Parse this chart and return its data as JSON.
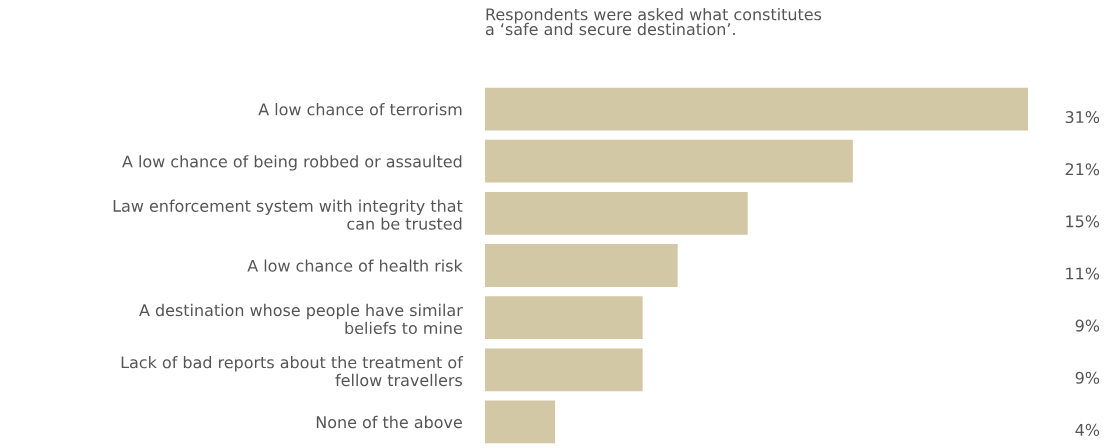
{
  "chart_data": {
    "type": "bar",
    "orientation": "horizontal",
    "title": "Respondents were asked what constitutes\na ‘safe and secure destination’.",
    "categories": [
      "A low chance of terrorism",
      "A low chance of being robbed or assaulted",
      "Law enforcement system with integrity that\ncan be trusted",
      "A low chance of health risk",
      "A destination whose people have similar\nbeliefs to mine",
      "Lack of bad reports about the treatment of\nfellow travellers",
      "None of the above"
    ],
    "values": [
      31,
      21,
      15,
      11,
      9,
      9,
      4
    ],
    "value_labels": [
      "31%",
      "21%",
      "15%",
      "11%",
      "9%",
      "9%",
      "4%"
    ],
    "color": "#d3c8a6"
  }
}
